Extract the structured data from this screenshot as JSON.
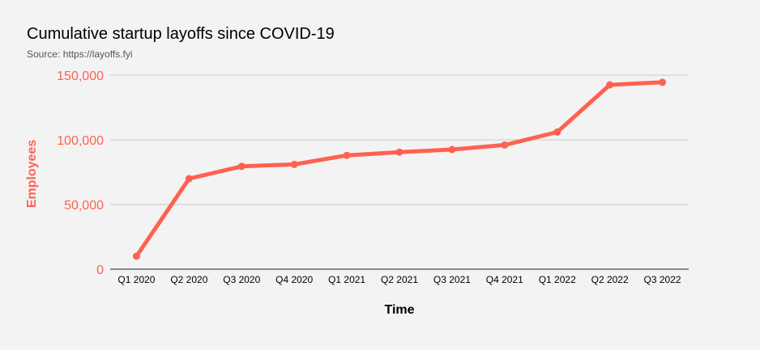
{
  "chart_data": {
    "type": "line",
    "title": "Cumulative startup layoffs since COVID-19",
    "subtitle": "Source: https://layoffs.fyi",
    "xlabel": "Time",
    "ylabel": "Employees",
    "categories": [
      "Q1 2020",
      "Q2 2020",
      "Q3 2020",
      "Q4 2020",
      "Q1 2021",
      "Q2 2021",
      "Q3 2021",
      "Q4 2021",
      "Q1 2022",
      "Q2 2022",
      "Q3 2022"
    ],
    "series": [
      {
        "values": [
          10000,
          70000,
          79500,
          81000,
          88000,
          90500,
          92500,
          96000,
          106000,
          142500,
          144500
        ]
      }
    ],
    "ylim": [
      0,
      150000
    ],
    "yticks": [
      0,
      50000,
      100000,
      150000
    ],
    "ytick_labels": [
      "0",
      "50,000",
      "100,000",
      "150,000"
    ],
    "grid": true,
    "legend": "none",
    "colors": {
      "line": "#ff6150",
      "axis_text": "#ff6150",
      "grid": "#c8c8c8",
      "background": "#f3f3f3"
    }
  }
}
